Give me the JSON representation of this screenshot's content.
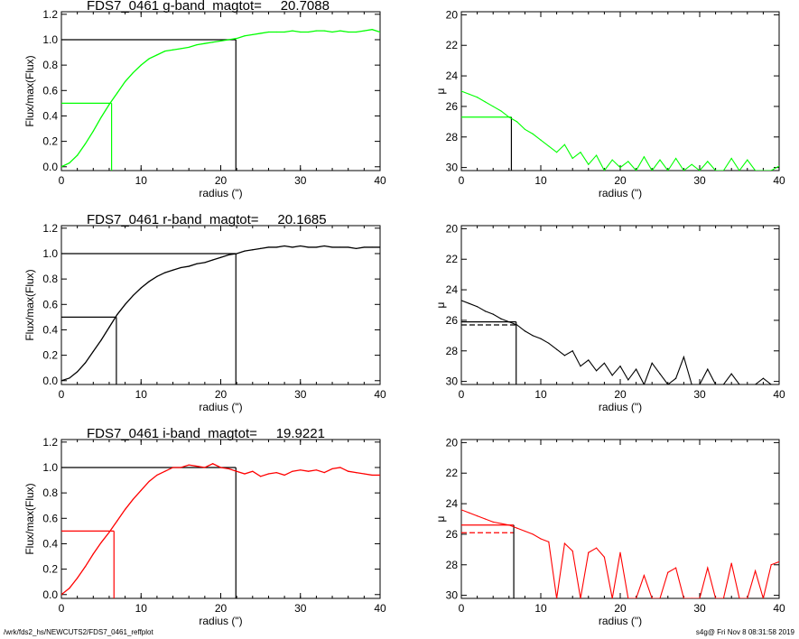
{
  "footer": {
    "left": "/wrk/fds2_hs/NEWCUTS2/FDS7_0461_reffplot",
    "right": "s4g@  Fri Nov  8 08:31:58 2019"
  },
  "chart_data": [
    {
      "type": "line",
      "band": "g",
      "title": "FDS7_0461 g-band  magtot=     20.7088",
      "color": "#00ff00",
      "xlabel": "radius (\")",
      "ylabel": "Flux/max(Flux)",
      "xlim": [
        0,
        40
      ],
      "ylim": [
        -0.03,
        1.22
      ],
      "xticks": [
        0,
        10,
        20,
        30,
        40
      ],
      "yticks": [
        0.0,
        0.2,
        0.4,
        0.6,
        0.8,
        1.0,
        1.2
      ],
      "ytick_labels": [
        "0.0",
        "0.2",
        "0.4",
        "0.6",
        "0.8",
        "1.0",
        "1.2"
      ],
      "half_radius": 6.3,
      "total_radius": 21.9,
      "x": [
        0,
        1,
        2,
        3,
        4,
        5,
        6,
        7,
        8,
        9,
        10,
        11,
        12,
        13,
        14,
        15,
        16,
        17,
        18,
        19,
        20,
        21,
        22,
        23,
        24,
        25,
        26,
        27,
        28,
        29,
        30,
        31,
        32,
        33,
        34,
        35,
        36,
        37,
        38,
        39,
        40
      ],
      "y": [
        0.0,
        0.03,
        0.09,
        0.18,
        0.28,
        0.39,
        0.49,
        0.58,
        0.67,
        0.74,
        0.8,
        0.85,
        0.88,
        0.91,
        0.92,
        0.93,
        0.94,
        0.96,
        0.97,
        0.98,
        0.99,
        1.0,
        1.01,
        1.03,
        1.04,
        1.05,
        1.06,
        1.06,
        1.06,
        1.07,
        1.06,
        1.06,
        1.07,
        1.07,
        1.06,
        1.07,
        1.06,
        1.06,
        1.07,
        1.08,
        1.06
      ]
    },
    {
      "type": "line",
      "band": "g",
      "color": "#00ff00",
      "xlabel": "radius (\")",
      "ylabel": "μ",
      "xlim": [
        0,
        40
      ],
      "ylim": [
        30.2,
        19.8
      ],
      "xticks": [
        0,
        10,
        20,
        30,
        40
      ],
      "yticks": [
        20,
        22,
        24,
        26,
        28,
        30
      ],
      "mu_half": 26.7,
      "half_radius": 6.3,
      "x": [
        0,
        1,
        2,
        3,
        4,
        5,
        6,
        7,
        8,
        9,
        10,
        11,
        12,
        13,
        14,
        15,
        16,
        17,
        18,
        19,
        20,
        21,
        22,
        23,
        24,
        25,
        26,
        27,
        28,
        29,
        30,
        31,
        32,
        33,
        34,
        35,
        36,
        37,
        38,
        39,
        40
      ],
      "y": [
        25.0,
        25.2,
        25.4,
        25.7,
        26.0,
        26.3,
        26.7,
        27.0,
        27.5,
        27.8,
        28.2,
        28.6,
        29.0,
        28.5,
        29.4,
        29.0,
        29.8,
        29.2,
        30.2,
        29.5,
        30.0,
        29.6,
        30.2,
        29.3,
        30.2,
        29.5,
        30.2,
        29.4,
        30.2,
        29.8,
        30.2,
        29.6,
        30.2,
        30.2,
        29.4,
        30.2,
        29.5,
        30.2,
        30.2,
        30.2,
        29.9
      ]
    },
    {
      "type": "line",
      "band": "r",
      "title": "FDS7_0461 r-band  magtot=     20.1685",
      "color": "#000000",
      "xlabel": "radius (\")",
      "ylabel": "Flux/max(Flux)",
      "xlim": [
        0,
        40
      ],
      "ylim": [
        -0.03,
        1.22
      ],
      "xticks": [
        0,
        10,
        20,
        30,
        40
      ],
      "yticks": [
        0.0,
        0.2,
        0.4,
        0.6,
        0.8,
        1.0,
        1.2
      ],
      "ytick_labels": [
        "0.0",
        "0.2",
        "0.4",
        "0.6",
        "0.8",
        "1.0",
        "1.2"
      ],
      "half_radius": 6.9,
      "total_radius": 21.9,
      "x": [
        0,
        1,
        2,
        3,
        4,
        5,
        6,
        7,
        8,
        9,
        10,
        11,
        12,
        13,
        14,
        15,
        16,
        17,
        18,
        19,
        20,
        21,
        22,
        23,
        24,
        25,
        26,
        27,
        28,
        29,
        30,
        31,
        32,
        33,
        34,
        35,
        36,
        37,
        38,
        39,
        40
      ],
      "y": [
        0.0,
        0.02,
        0.07,
        0.14,
        0.23,
        0.32,
        0.42,
        0.52,
        0.6,
        0.67,
        0.73,
        0.78,
        0.82,
        0.85,
        0.87,
        0.89,
        0.9,
        0.92,
        0.93,
        0.95,
        0.97,
        0.99,
        1.0,
        1.02,
        1.03,
        1.04,
        1.05,
        1.05,
        1.06,
        1.05,
        1.06,
        1.05,
        1.05,
        1.06,
        1.05,
        1.05,
        1.05,
        1.04,
        1.05,
        1.05,
        1.05
      ]
    },
    {
      "type": "line",
      "band": "r",
      "color": "#000000",
      "xlabel": "radius (\")",
      "ylabel": "μ",
      "xlim": [
        0,
        40
      ],
      "ylim": [
        30.2,
        19.8
      ],
      "xticks": [
        0,
        10,
        20,
        30,
        40
      ],
      "yticks": [
        20,
        22,
        24,
        26,
        28,
        30
      ],
      "mu_half": 26.1,
      "mu_half_dashed": 26.3,
      "half_radius": 6.9,
      "x": [
        0,
        1,
        2,
        3,
        4,
        5,
        6,
        7,
        8,
        9,
        10,
        11,
        12,
        13,
        14,
        15,
        16,
        17,
        18,
        19,
        20,
        21,
        22,
        23,
        24,
        25,
        26,
        27,
        28,
        29,
        30,
        31,
        32,
        33,
        34,
        35,
        36,
        37,
        38,
        39,
        40
      ],
      "y": [
        24.7,
        24.9,
        25.1,
        25.4,
        25.6,
        25.9,
        26.1,
        26.3,
        26.7,
        27.0,
        27.2,
        27.5,
        27.9,
        28.3,
        28.0,
        29.0,
        28.6,
        29.3,
        28.8,
        29.6,
        29.0,
        29.9,
        29.2,
        30.2,
        28.8,
        29.5,
        30.2,
        29.8,
        28.4,
        30.2,
        30.2,
        29.2,
        30.2,
        30.2,
        29.5,
        30.2,
        30.2,
        30.2,
        29.8,
        30.2,
        30.2
      ]
    },
    {
      "type": "line",
      "band": "i",
      "title": "FDS7_0461 i-band  magtot=     19.9221",
      "color": "#ff0000",
      "xlabel": "radius (\")",
      "ylabel": "Flux/max(Flux)",
      "xlim": [
        0,
        40
      ],
      "ylim": [
        -0.03,
        1.22
      ],
      "xticks": [
        0,
        10,
        20,
        30,
        40
      ],
      "yticks": [
        0.0,
        0.2,
        0.4,
        0.6,
        0.8,
        1.0,
        1.2
      ],
      "ytick_labels": [
        "0.0",
        "0.2",
        "0.4",
        "0.6",
        "0.8",
        "1.0",
        "1.2"
      ],
      "half_radius": 6.6,
      "total_radius": 21.9,
      "x": [
        0,
        1,
        2,
        3,
        4,
        5,
        6,
        7,
        8,
        9,
        10,
        11,
        12,
        13,
        14,
        15,
        16,
        17,
        18,
        19,
        20,
        21,
        22,
        23,
        24,
        25,
        26,
        27,
        28,
        29,
        30,
        31,
        32,
        33,
        34,
        35,
        36,
        37,
        38,
        39,
        40
      ],
      "y": [
        0.0,
        0.05,
        0.13,
        0.22,
        0.32,
        0.41,
        0.49,
        0.58,
        0.67,
        0.75,
        0.82,
        0.89,
        0.94,
        0.97,
        1.0,
        1.0,
        1.02,
        1.01,
        1.0,
        1.03,
        1.0,
        0.99,
        0.97,
        0.95,
        0.97,
        0.93,
        0.95,
        0.96,
        0.94,
        0.97,
        0.98,
        0.97,
        0.98,
        0.96,
        0.99,
        1.0,
        0.97,
        0.96,
        0.95,
        0.94,
        0.94
      ]
    },
    {
      "type": "line",
      "band": "i",
      "color": "#ff0000",
      "xlabel": "radius (\")",
      "ylabel": "μ",
      "xlim": [
        0,
        40
      ],
      "ylim": [
        30.2,
        19.8
      ],
      "xticks": [
        0,
        10,
        20,
        30,
        40
      ],
      "yticks": [
        20,
        22,
        24,
        26,
        28,
        30
      ],
      "mu_half": 25.4,
      "mu_half_dashed": 25.9,
      "half_radius": 6.6,
      "x": [
        0,
        1,
        2,
        3,
        4,
        5,
        6,
        7,
        8,
        9,
        10,
        11,
        12,
        13,
        14,
        15,
        16,
        17,
        18,
        19,
        20,
        21,
        22,
        23,
        24,
        25,
        26,
        27,
        28,
        29,
        30,
        31,
        32,
        33,
        34,
        35,
        36,
        37,
        38,
        39,
        40
      ],
      "y": [
        24.4,
        24.6,
        24.8,
        25.0,
        25.2,
        25.3,
        25.4,
        25.6,
        25.8,
        26.0,
        26.3,
        26.5,
        30.2,
        26.6,
        27.1,
        30.2,
        27.2,
        26.9,
        27.5,
        30.2,
        27.2,
        30.2,
        30.2,
        28.7,
        30.2,
        30.2,
        28.5,
        28.2,
        30.2,
        30.2,
        30.2,
        28.2,
        30.2,
        30.2,
        27.9,
        30.2,
        30.2,
        28.4,
        30.2,
        28.0,
        27.8
      ]
    }
  ]
}
